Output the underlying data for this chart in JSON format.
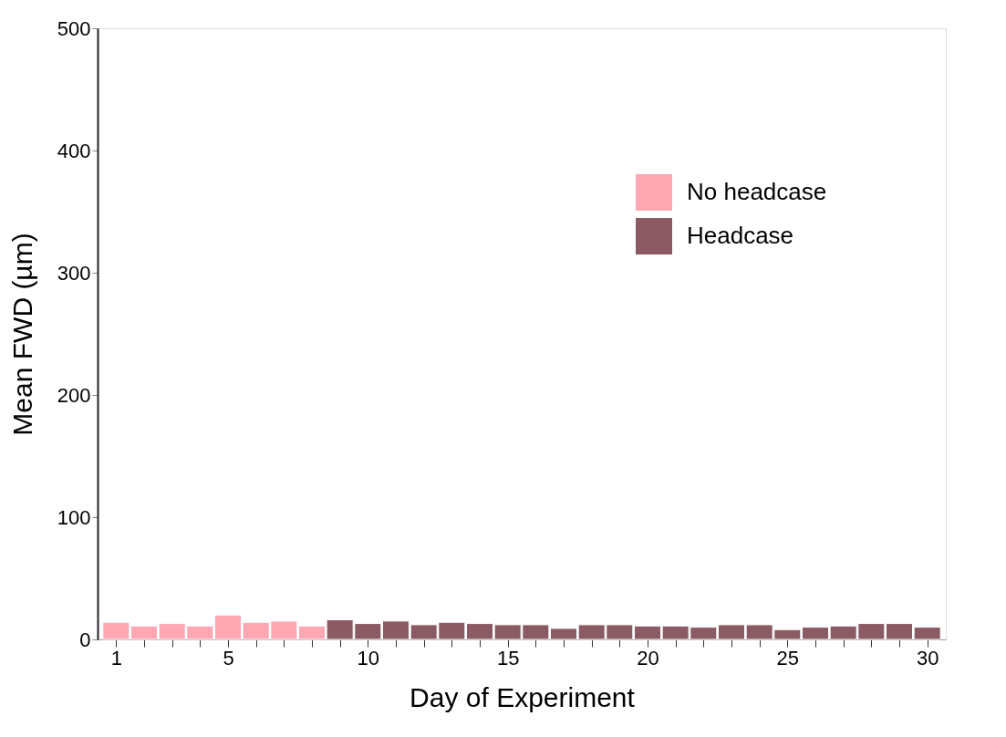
{
  "chart_data": {
    "type": "bar",
    "xlabel": "Day of Experiment",
    "ylabel": "Mean FWD (µm)",
    "x": [
      1,
      2,
      3,
      4,
      5,
      6,
      7,
      8,
      9,
      10,
      11,
      12,
      13,
      14,
      15,
      16,
      17,
      18,
      19,
      20,
      21,
      22,
      23,
      24,
      25,
      26,
      27,
      28,
      29,
      30
    ],
    "series": [
      {
        "name": "No headcase",
        "color": "#ffa8b4",
        "values": [
          14,
          11,
          13,
          11,
          20,
          14,
          15,
          11,
          null,
          null,
          null,
          null,
          null,
          null,
          null,
          null,
          null,
          null,
          null,
          null,
          null,
          null,
          null,
          null,
          null,
          null,
          null,
          null,
          null,
          null
        ]
      },
      {
        "name": "Headcase",
        "color": "#8b5a62",
        "values": [
          null,
          null,
          null,
          null,
          null,
          null,
          null,
          null,
          16,
          13,
          15,
          12,
          14,
          13,
          12,
          12,
          9,
          12,
          12,
          11,
          11,
          10,
          12,
          12,
          8,
          10,
          11,
          13,
          13,
          10
        ]
      }
    ],
    "xlim": [
      0.5,
      30.5
    ],
    "xticks": [
      1,
      {
        "value": 2,
        "label": null
      },
      {
        "value": 3,
        "label": null
      },
      {
        "value": 4,
        "label": null
      },
      5,
      {
        "value": 6,
        "label": null
      },
      {
        "value": 7,
        "label": null
      },
      {
        "value": 8,
        "label": null
      },
      {
        "value": 9,
        "label": null
      },
      10,
      {
        "value": 11,
        "label": null
      },
      {
        "value": 12,
        "label": null
      },
      {
        "value": 13,
        "label": null
      },
      {
        "value": 14,
        "label": null
      },
      15,
      {
        "value": 16,
        "label": null
      },
      {
        "value": 17,
        "label": null
      },
      {
        "value": 18,
        "label": null
      },
      {
        "value": 19,
        "label": null
      },
      20,
      {
        "value": 21,
        "label": null
      },
      {
        "value": 22,
        "label": null
      },
      {
        "value": 23,
        "label": null
      },
      {
        "value": 24,
        "label": null
      },
      25,
      {
        "value": 26,
        "label": null
      },
      {
        "value": 27,
        "label": null
      },
      {
        "value": 28,
        "label": null
      },
      {
        "value": 29,
        "label": null
      },
      30
    ],
    "ylim": [
      0,
      500
    ],
    "yticks": [
      0,
      100,
      200,
      300,
      400,
      500
    ],
    "grid": false,
    "legend": "top right"
  }
}
